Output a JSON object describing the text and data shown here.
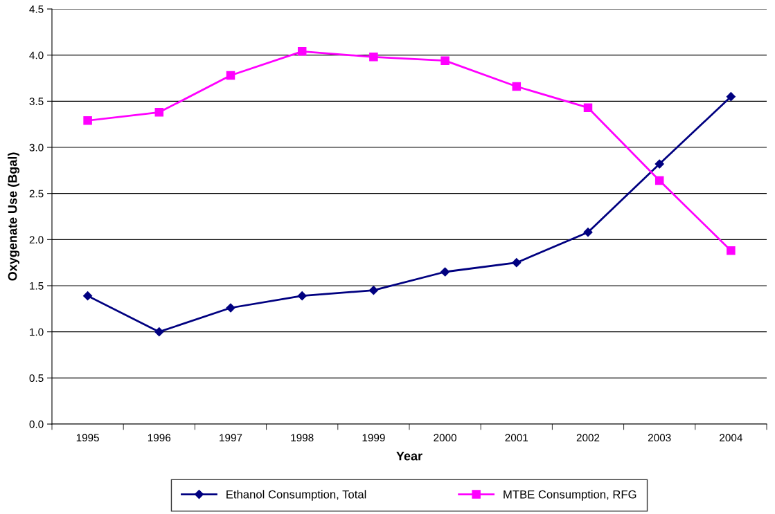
{
  "chart_data": {
    "type": "line",
    "xlabel": "Year",
    "ylabel": "Oxygenate Use (Bgal)",
    "categories": [
      "1995",
      "1996",
      "1997",
      "1998",
      "1999",
      "2000",
      "2001",
      "2002",
      "2003",
      "2004"
    ],
    "series": [
      {
        "name": "Ethanol Consumption, Total",
        "color": "#000080",
        "marker": "diamond",
        "values": [
          1.39,
          1.0,
          1.26,
          1.39,
          1.45,
          1.65,
          1.75,
          2.08,
          2.82,
          3.55
        ]
      },
      {
        "name": "MTBE Consumption, RFG",
        "color": "#ff00ff",
        "marker": "square",
        "values": [
          3.29,
          3.38,
          3.78,
          4.04,
          3.98,
          3.94,
          3.66,
          3.43,
          2.64,
          1.88
        ]
      }
    ],
    "ylim": [
      0,
      4.5
    ],
    "yticks": [
      {
        "value": 0,
        "label": "0.0"
      },
      {
        "value": 0.5,
        "label": "0.5"
      },
      {
        "value": 1,
        "label": "1.0"
      },
      {
        "value": 1.5,
        "label": "1.5"
      },
      {
        "value": 2,
        "label": "2.0"
      },
      {
        "value": 2.5,
        "label": "2.5"
      },
      {
        "value": 3,
        "label": "3.0"
      },
      {
        "value": 3.5,
        "label": "3.5"
      },
      {
        "value": 4,
        "label": "4.0"
      },
      {
        "value": 4.5,
        "label": "4.5"
      }
    ],
    "grid": "y",
    "legend": "bottom",
    "line_style": "solid"
  }
}
